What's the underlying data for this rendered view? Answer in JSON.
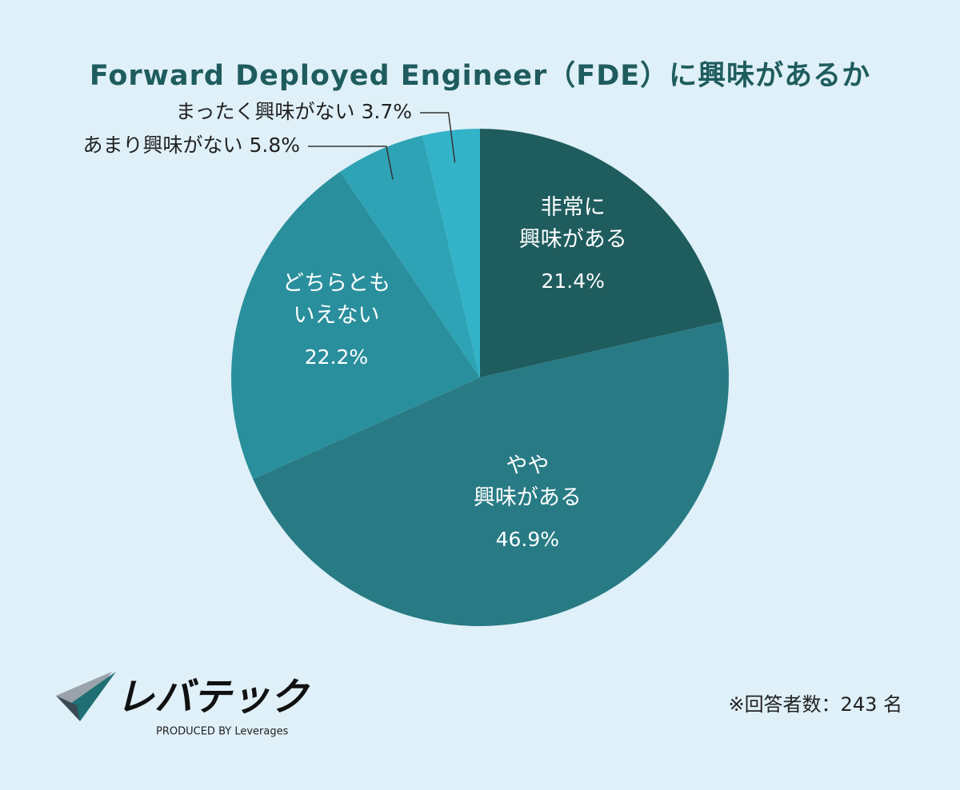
{
  "chart_data": {
    "type": "pie",
    "title": "Forward Deployed Engineer（FDE）に興味があるか",
    "categories": [
      "非常に\n興味がある",
      "やや\n興味がある",
      "どちらとも\nいえない",
      "あまり興味がない",
      "まったく興味がない"
    ],
    "values": [
      21.4,
      46.9,
      22.2,
      5.8,
      3.7
    ],
    "value_labels": [
      "21.4%",
      "46.9%",
      "22.2%",
      "5.8%",
      "3.7%"
    ],
    "colors": [
      "#1f5c5e",
      "#287b84",
      "#2a8f9c",
      "#2ea3b5",
      "#33b3c8"
    ],
    "note": "※回答者数：243 名"
  },
  "logo": {
    "name": "レバテック",
    "tagline": "PRODUCED BY Leverages"
  }
}
